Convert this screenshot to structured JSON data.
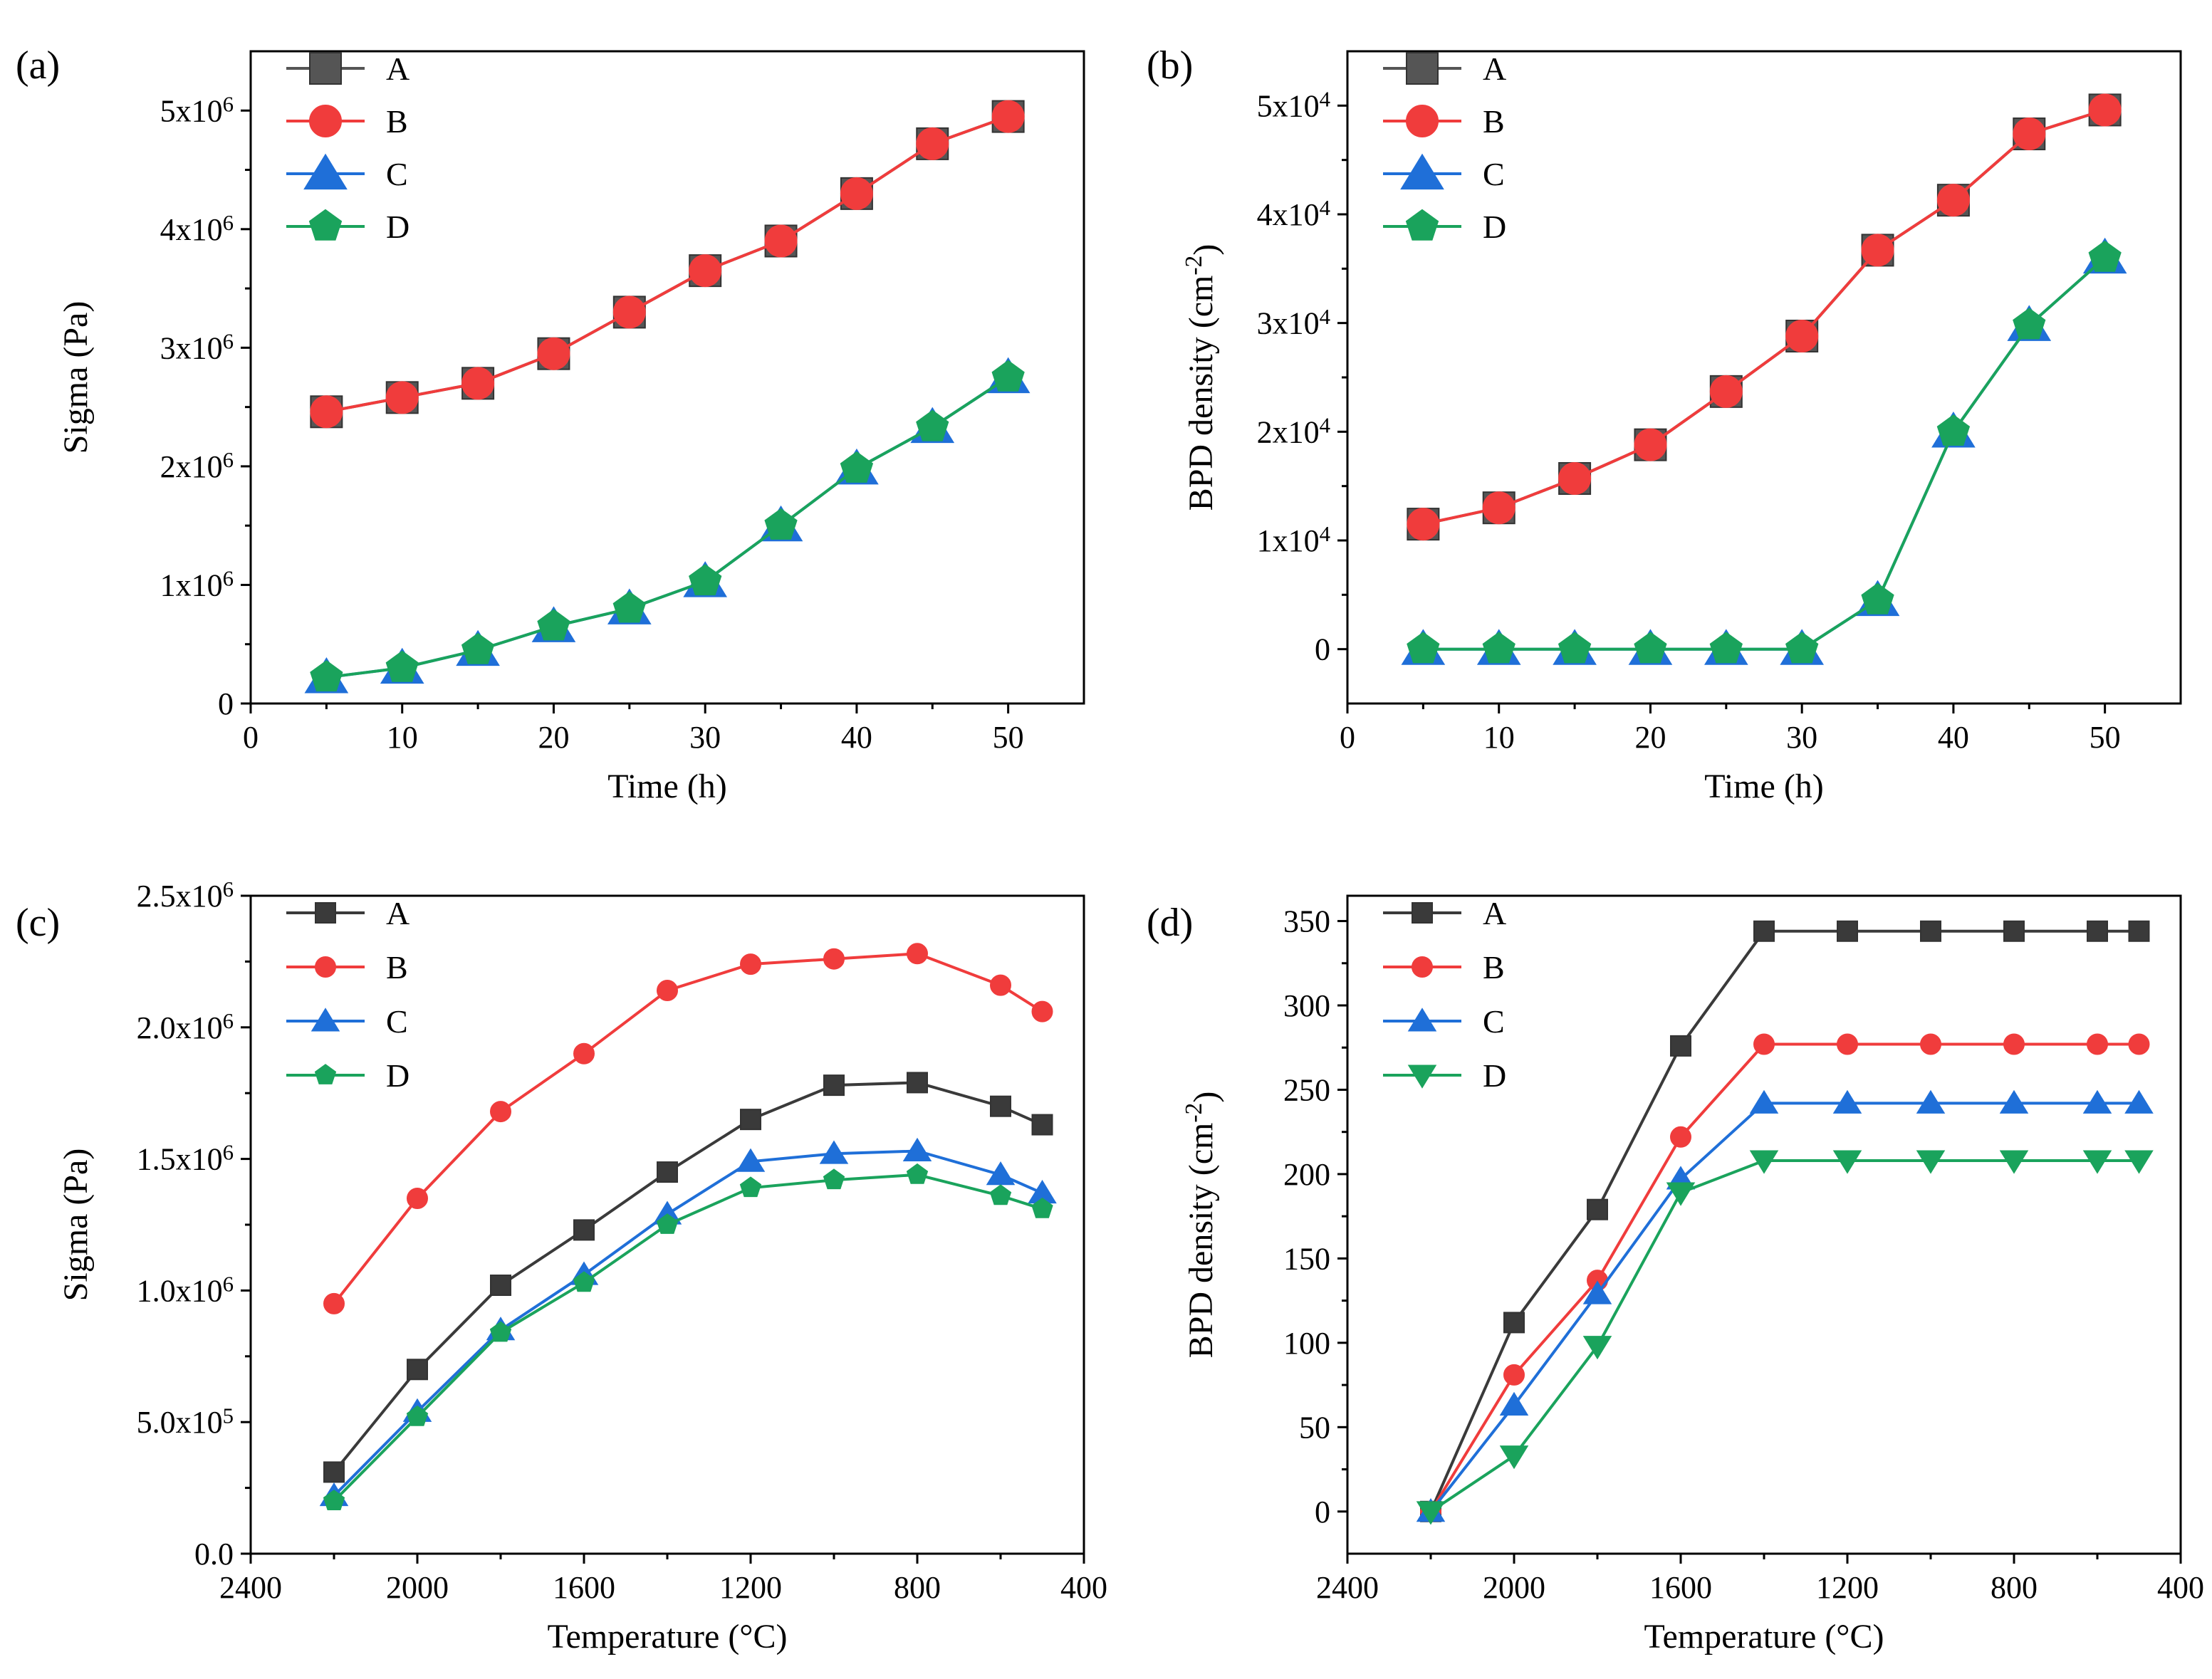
{
  "chart_data": [
    {
      "panel_label": "(a)",
      "type": "line",
      "xlabel": "Time (h)",
      "ylabel": "Sigma (Pa)",
      "xlim": [
        0,
        55
      ],
      "ylim": [
        0,
        5500000
      ],
      "xticks": [
        0,
        10,
        20,
        30,
        40,
        50
      ],
      "xtick_labels": [
        "0",
        "10",
        "20",
        "30",
        "40",
        "50"
      ],
      "yticks": [
        0,
        1000000,
        2000000,
        3000000,
        4000000,
        5000000
      ],
      "ytick_labels": [
        "0",
        "1x10^6",
        "2x10^6",
        "3x10^6",
        "4x10^6",
        "5x10^6"
      ],
      "x_reversed": false,
      "grid": false,
      "legend_position": "top-left",
      "marker_size": "large",
      "x": [
        5,
        10,
        15,
        20,
        25,
        30,
        35,
        40,
        45,
        50
      ],
      "series": [
        {
          "name": "A",
          "color": "#555555",
          "marker": "square",
          "values": [
            2460000,
            2580000,
            2700000,
            2950000,
            3300000,
            3650000,
            3900000,
            4300000,
            4720000,
            4950000
          ]
        },
        {
          "name": "B",
          "color": "#f03c3c",
          "marker": "circle",
          "values": [
            2460000,
            2580000,
            2700000,
            2950000,
            3300000,
            3650000,
            3900000,
            4300000,
            4720000,
            4950000
          ]
        },
        {
          "name": "C",
          "color": "#1f6fd8",
          "marker": "triangle-up",
          "values": [
            220000,
            300000,
            450000,
            650000,
            800000,
            1030000,
            1500000,
            1980000,
            2330000,
            2750000
          ]
        },
        {
          "name": "D",
          "color": "#1aa35c",
          "marker": "pentagon",
          "values": [
            220000,
            300000,
            450000,
            650000,
            800000,
            1030000,
            1500000,
            1980000,
            2330000,
            2750000
          ]
        }
      ]
    },
    {
      "panel_label": "(b)",
      "type": "line",
      "xlabel": "Time (h)",
      "ylabel": "BPD density (cm^-2)",
      "xlim": [
        0,
        55
      ],
      "ylim": [
        -5000,
        55000
      ],
      "xticks": [
        0,
        10,
        20,
        30,
        40,
        50
      ],
      "xtick_labels": [
        "0",
        "10",
        "20",
        "30",
        "40",
        "50"
      ],
      "yticks": [
        0,
        10000,
        20000,
        30000,
        40000,
        50000
      ],
      "ytick_labels": [
        "0",
        "1x10^4",
        "2x10^4",
        "3x10^4",
        "4x10^4",
        "5x10^4"
      ],
      "x_reversed": false,
      "grid": false,
      "legend_position": "top-left",
      "marker_size": "large",
      "x": [
        5,
        10,
        15,
        20,
        25,
        30,
        35,
        40,
        45,
        50
      ],
      "series": [
        {
          "name": "A",
          "color": "#555555",
          "marker": "square",
          "values": [
            11500,
            13000,
            15700,
            18800,
            23700,
            28800,
            36700,
            41300,
            47400,
            49600
          ]
        },
        {
          "name": "B",
          "color": "#f03c3c",
          "marker": "circle",
          "values": [
            11500,
            13000,
            15700,
            18800,
            23700,
            28800,
            36700,
            41300,
            47400,
            49600
          ]
        },
        {
          "name": "C",
          "color": "#1f6fd8",
          "marker": "triangle-up",
          "values": [
            0,
            0,
            0,
            0,
            0,
            0,
            4500,
            20000,
            29800,
            36000
          ]
        },
        {
          "name": "D",
          "color": "#1aa35c",
          "marker": "pentagon",
          "values": [
            0,
            0,
            0,
            0,
            0,
            0,
            4500,
            20000,
            29800,
            36000
          ]
        }
      ]
    },
    {
      "panel_label": "(c)",
      "type": "line",
      "xlabel": "Temperature (°C)",
      "ylabel": "Sigma (Pa)",
      "xlim": [
        2400,
        400
      ],
      "ylim": [
        0,
        2500000
      ],
      "xticks": [
        2400,
        2000,
        1600,
        1200,
        800,
        400
      ],
      "xtick_labels": [
        "2400",
        "2000",
        "1600",
        "1200",
        "800",
        "400"
      ],
      "yticks": [
        0,
        500000,
        1000000,
        1500000,
        2000000,
        2500000
      ],
      "ytick_labels": [
        "0.0",
        "5.0x10^5",
        "1.0x10^6",
        "1.5x10^6",
        "2.0x10^6",
        "2.5x10^6"
      ],
      "x_reversed": true,
      "grid": false,
      "legend_position": "top-left",
      "marker_size": "small",
      "x": [
        2200,
        2000,
        1800,
        1600,
        1400,
        1200,
        1000,
        800,
        600,
        500
      ],
      "series": [
        {
          "name": "A",
          "color": "#3a3a3a",
          "marker": "square",
          "values": [
            310000,
            700000,
            1020000,
            1230000,
            1450000,
            1650000,
            1780000,
            1790000,
            1700000,
            1630000
          ]
        },
        {
          "name": "B",
          "color": "#f03c3c",
          "marker": "circle",
          "values": [
            950000,
            1350000,
            1680000,
            1900000,
            2140000,
            2240000,
            2260000,
            2280000,
            2160000,
            2060000
          ]
        },
        {
          "name": "C",
          "color": "#1f6fd8",
          "marker": "triangle-up",
          "values": [
            220000,
            540000,
            850000,
            1060000,
            1290000,
            1490000,
            1520000,
            1530000,
            1440000,
            1370000
          ]
        },
        {
          "name": "D",
          "color": "#1aa35c",
          "marker": "pentagon",
          "values": [
            200000,
            520000,
            840000,
            1030000,
            1250000,
            1390000,
            1420000,
            1440000,
            1360000,
            1310000
          ]
        }
      ]
    },
    {
      "panel_label": "(d)",
      "type": "line",
      "xlabel": "Temperature (°C)",
      "ylabel": "BPD density (cm^-2)",
      "xlim": [
        2400,
        400
      ],
      "ylim": [
        -25,
        365
      ],
      "xticks": [
        2400,
        2000,
        1600,
        1200,
        800,
        400
      ],
      "xtick_labels": [
        "2400",
        "2000",
        "1600",
        "1200",
        "800",
        "400"
      ],
      "yticks": [
        0,
        50,
        100,
        150,
        200,
        250,
        300,
        350
      ],
      "ytick_labels": [
        "0",
        "50",
        "100",
        "150",
        "200",
        "250",
        "300",
        "350"
      ],
      "x_reversed": true,
      "grid": false,
      "legend_position": "top-left",
      "marker_size": "small",
      "x": [
        2200,
        2000,
        1800,
        1600,
        1400,
        1200,
        1000,
        800,
        600,
        500
      ],
      "series": [
        {
          "name": "A",
          "color": "#3a3a3a",
          "marker": "square",
          "values": [
            0,
            112,
            179,
            276,
            344,
            344,
            344,
            344,
            344,
            344
          ]
        },
        {
          "name": "B",
          "color": "#f03c3c",
          "marker": "circle",
          "values": [
            0,
            81,
            137,
            222,
            277,
            277,
            277,
            277,
            277,
            277
          ]
        },
        {
          "name": "C",
          "color": "#1f6fd8",
          "marker": "triangle-up",
          "values": [
            0,
            63,
            129,
            197,
            242,
            242,
            242,
            242,
            242,
            242
          ]
        },
        {
          "name": "D",
          "color": "#1aa35c",
          "marker": "triangle-down",
          "values": [
            0,
            33,
            98,
            189,
            208,
            208,
            208,
            208,
            208,
            208
          ]
        }
      ]
    }
  ]
}
